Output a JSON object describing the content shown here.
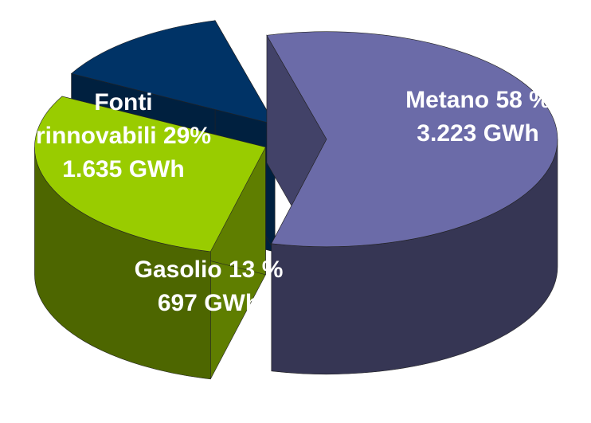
{
  "chart_data": {
    "type": "pie3d",
    "categories": [
      "Metano",
      "Fonti rinnovabili",
      "Gasolio"
    ],
    "values": [
      58,
      29,
      13
    ],
    "value_labels": [
      "58 %",
      "29%",
      "13 %"
    ],
    "energy_labels": [
      "3.223 GWh",
      "1.635 GWh",
      "697 GWh"
    ],
    "colors": [
      "#6b6ba8",
      "#99cc00",
      "#003366"
    ]
  }
}
